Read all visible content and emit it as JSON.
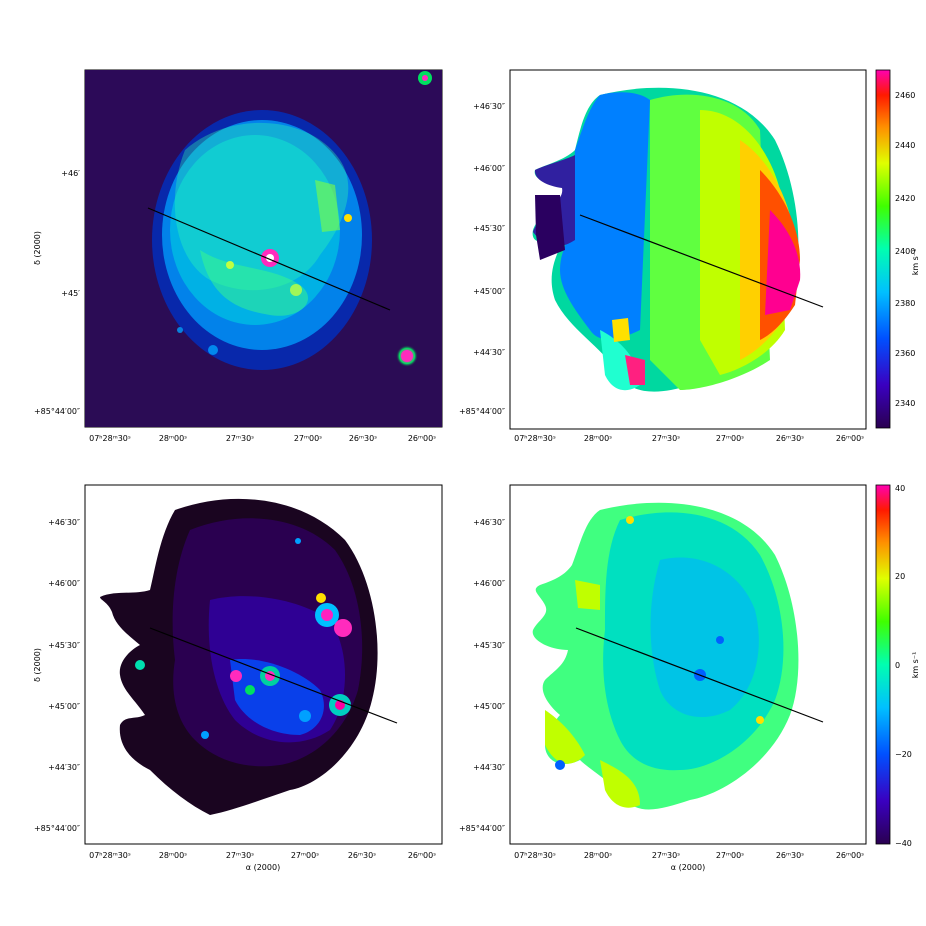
{
  "panels": [
    {
      "id": "top-left",
      "content": "intensity-map",
      "ra_ticks": [
        "07ʰ28ᵐ30ˢ",
        "28ᵐ00ˢ",
        "27ᵐ30ˢ",
        "27ᵐ00ˢ",
        "26ᵐ30ˢ",
        "26ᵐ00ˢ"
      ],
      "dec_ticks": [
        "+46′",
        "+45′",
        "+85°44′00″"
      ],
      "ylabel": "δ (2000)",
      "xlabel": ""
    },
    {
      "id": "top-right",
      "content": "velocity-field",
      "ra_ticks": [
        "07ʰ28ᵐ30ˢ",
        "28ᵐ00ˢ",
        "27ᵐ30ˢ",
        "27ᵐ00ˢ",
        "26ᵐ30ˢ",
        "26ᵐ00ˢ"
      ],
      "dec_ticks": [
        "+46′30″",
        "+46′00″",
        "+45′30″",
        "+45′00″",
        "+44′30″",
        "+85°44′00″"
      ],
      "colorbar": {
        "label": "km s⁻¹",
        "ticks": [
          "2460",
          "2440",
          "2420",
          "2400",
          "2380",
          "2360",
          "2340"
        ]
      }
    },
    {
      "id": "bottom-left",
      "content": "dispersion-map",
      "ra_ticks": [
        "07ʰ28ᵐ30ˢ",
        "28ᵐ00ˢ",
        "27ᵐ30ˢ",
        "27ᵐ00ˢ",
        "26ᵐ30ˢ",
        "26ᵐ00ˢ"
      ],
      "dec_ticks": [
        "+46′30″",
        "+46′00″",
        "+45′30″",
        "+45′00″",
        "+44′30″",
        "+85°44′00″"
      ],
      "ylabel": "δ (2000)",
      "xlabel": "α (2000)"
    },
    {
      "id": "bottom-right",
      "content": "residual-velocity-map",
      "ra_ticks": [
        "07ʰ28ᵐ30ˢ",
        "28ᵐ00ˢ",
        "27ᵐ30ˢ",
        "27ᵐ00ˢ",
        "26ᵐ30ˢ",
        "26ᵐ00ˢ"
      ],
      "dec_ticks": [
        "+46′30″",
        "+46′00″",
        "+45′30″",
        "+45′00″",
        "+44′30″",
        "+85°44′00″"
      ],
      "xlabel": "α (2000)",
      "colorbar": {
        "label": "km s⁻¹",
        "ticks": [
          "40",
          "20",
          "0",
          "−20",
          "−40"
        ]
      }
    }
  ],
  "colors": {
    "background_dark": "#2a0a4a",
    "cmap": [
      "#2a0050",
      "#3a00a0",
      "#0030ff",
      "#00a0ff",
      "#00e0d0",
      "#00ff60",
      "#c0ff00",
      "#ffe000",
      "#ff8000",
      "#ff2000",
      "#ff00a0"
    ]
  }
}
